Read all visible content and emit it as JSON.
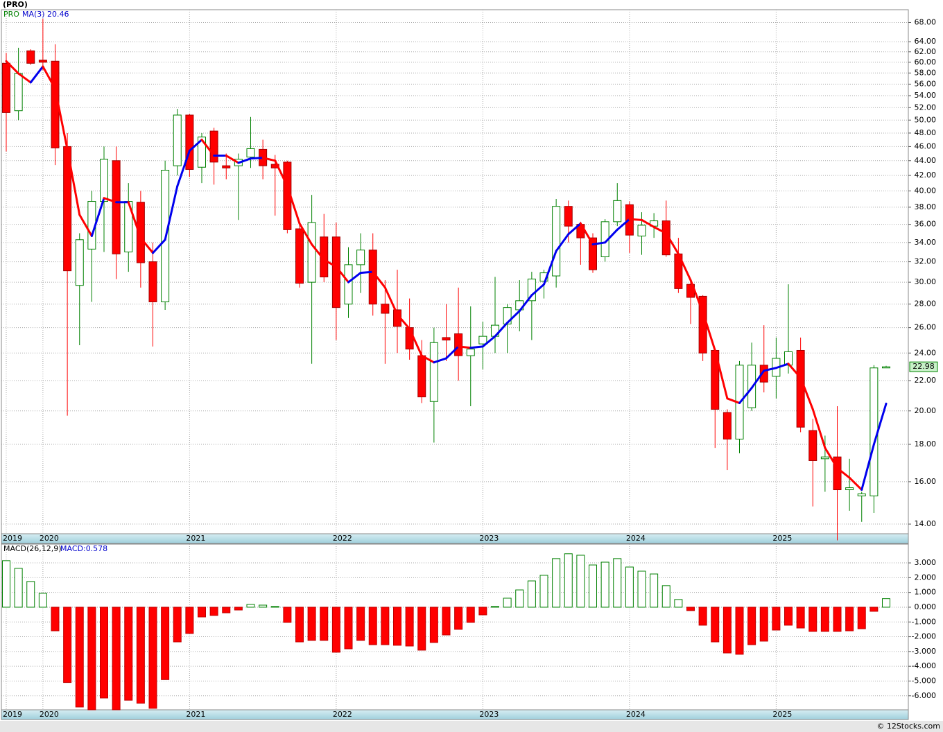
{
  "chart_data": [
    {
      "type": "candlestick",
      "title": "(PRO)",
      "symbol": "PRO",
      "log_scale": true,
      "grid": true,
      "xticks": [
        {
          "value": 0,
          "label": "2019"
        },
        {
          "value": 3,
          "label": "2020"
        },
        {
          "value": 15,
          "label": "2021"
        },
        {
          "value": 27,
          "label": "2022"
        },
        {
          "value": 39,
          "label": "2023"
        },
        {
          "value": 51,
          "label": "2024"
        },
        {
          "value": 63,
          "label": "2025"
        }
      ],
      "ylim": [
        13.58,
        70.8
      ],
      "yticks": [
        {
          "value": 14,
          "label": "14.00"
        },
        {
          "value": 16,
          "label": "16.00"
        },
        {
          "value": 18,
          "label": "18.00"
        },
        {
          "value": 20,
          "label": "20.00"
        },
        {
          "value": 22,
          "label": "22.00"
        },
        {
          "value": 24,
          "label": "24.00"
        },
        {
          "value": 26,
          "label": "26.00"
        },
        {
          "value": 28,
          "label": "28.00"
        },
        {
          "value": 30,
          "label": "30.00"
        },
        {
          "value": 32,
          "label": "32.00"
        },
        {
          "value": 34,
          "label": "34.00"
        },
        {
          "value": 36,
          "label": "36.00"
        },
        {
          "value": 38,
          "label": "38.00"
        },
        {
          "value": 40,
          "label": "40.00"
        },
        {
          "value": 42,
          "label": "42.00"
        },
        {
          "value": 44,
          "label": "44.00"
        },
        {
          "value": 46,
          "label": "46.00"
        },
        {
          "value": 48,
          "label": "48.00"
        },
        {
          "value": 50,
          "label": "50.00"
        },
        {
          "value": 52,
          "label": "52.00"
        },
        {
          "value": 54,
          "label": "54.00"
        },
        {
          "value": 56,
          "label": "56.00"
        },
        {
          "value": 58,
          "label": "58.00"
        },
        {
          "value": 60,
          "label": "60.00"
        },
        {
          "value": 62,
          "label": "62.00"
        },
        {
          "value": 64,
          "label": "64.00"
        },
        {
          "value": 68,
          "label": "68.00"
        }
      ],
      "up_color": "#008000",
      "down_color": "#ff0000",
      "open": [
        59.8,
        51.5,
        62.2,
        60.4,
        60.2,
        46,
        29.7,
        33.3,
        38.7,
        44,
        33,
        38.6,
        32,
        28.2,
        43.3,
        50.8,
        43.1,
        48.3,
        43.3,
        43.3,
        44.5,
        45.6,
        43.5,
        43.8,
        35.5,
        30,
        34.6,
        34.6,
        28,
        31.7,
        33.2,
        28,
        27.5,
        26,
        23.8,
        20.6,
        25.2,
        25.5,
        23.8,
        24.7,
        25.3,
        26.3,
        27.5,
        28.3,
        30.1,
        30.6,
        38.1,
        36,
        34.5,
        32.5,
        36.3,
        38.3,
        34.7,
        35.8,
        36.4,
        32.8,
        29.8,
        28.7,
        24.2,
        19.9,
        18.3,
        20.2,
        23.1,
        22.3,
        23.1,
        24.2,
        18.8,
        17.2,
        17.3,
        15.6,
        15.3,
        15.3,
        22.9
      ],
      "high": [
        61.8,
        62.8,
        62.5,
        68.8,
        63.5,
        48,
        35,
        40,
        46,
        46,
        41,
        40,
        34,
        44,
        51.8,
        51,
        48,
        48.8,
        45,
        45,
        50.5,
        47,
        44.8,
        44,
        36.2,
        39.5,
        37.2,
        36.2,
        33.5,
        35,
        35,
        30.2,
        31.2,
        28.5,
        25,
        26,
        28,
        29.5,
        27.8,
        26.5,
        30.5,
        28,
        30.2,
        31,
        31.2,
        39,
        38.8,
        36.3,
        35,
        36.6,
        41,
        38.7,
        37.4,
        37.3,
        38.8,
        34.5,
        30.2,
        28.8,
        24.3,
        20.1,
        23.4,
        24.8,
        26.2,
        25.2,
        29.8,
        25.2,
        19.5,
        18.5,
        20.3,
        17.2,
        15.5,
        23.1,
        23.05
      ],
      "low": [
        45.3,
        50,
        59.5,
        58.5,
        43.4,
        19.7,
        24.6,
        28.2,
        33,
        30.3,
        31,
        29.5,
        24.5,
        27.5,
        42,
        41.8,
        41,
        40.8,
        41.5,
        36.5,
        43,
        41.5,
        37,
        35,
        29.5,
        23.2,
        30,
        25,
        26.8,
        29,
        27,
        23.2,
        24,
        23.5,
        20.5,
        18.1,
        23.4,
        22,
        20.3,
        22.8,
        24,
        24,
        25.7,
        25,
        28.5,
        29.5,
        34,
        31.7,
        30.9,
        32,
        35.8,
        32.9,
        32.7,
        34.5,
        32.5,
        29,
        26.3,
        23.4,
        17.8,
        16.6,
        17.5,
        20,
        21.2,
        20.8,
        22.5,
        18.7,
        14.8,
        15.5,
        13.3,
        14.6,
        14.1,
        14.5,
        22.9
      ],
      "close": [
        51.2,
        57.9,
        59.8,
        60,
        45.8,
        31.1,
        34.3,
        38.7,
        44.2,
        32.8,
        38.7,
        31.9,
        28.2,
        42.7,
        50.8,
        42.8,
        47.4,
        43.8,
        43,
        44.2,
        45.7,
        43.3,
        43,
        35.4,
        29.9,
        36.2,
        30.5,
        27.7,
        31.7,
        33.2,
        28,
        27.2,
        26.1,
        24.3,
        20.9,
        24.8,
        25,
        23.8,
        24.3,
        25.3,
        26.2,
        27.7,
        28.3,
        30.3,
        30.9,
        38.1,
        35.8,
        34.5,
        31.2,
        36.3,
        38.8,
        34.8,
        35.9,
        36.4,
        32.7,
        29.4,
        28.6,
        24,
        20.1,
        18.3,
        23.1,
        23.1,
        21.9,
        23.6,
        24.1,
        19,
        17.1,
        17.3,
        15.6,
        15.7,
        15.4,
        22.9,
        22.98
      ],
      "ma": {
        "name": "MA(3)",
        "rise_color": "#0000ee",
        "fall_color": "#ff0000",
        "values": [
          60.2,
          57.9,
          56.3,
          59.2,
          55.2,
          45.6,
          37.1,
          34.7,
          39.1,
          38.6,
          38.6,
          34.5,
          32.9,
          34.3,
          40.6,
          45.4,
          47.0,
          44.7,
          44.7,
          43.7,
          44.3,
          44.4,
          44.0,
          40.6,
          36.1,
          33.8,
          32.2,
          31.5,
          30.0,
          30.9,
          31.0,
          29.5,
          27.1,
          25.9,
          23.8,
          23.3,
          23.6,
          24.5,
          24.4,
          24.5,
          25.3,
          26.4,
          27.4,
          28.8,
          29.8,
          33.1,
          34.9,
          36.1,
          33.8,
          34.0,
          35.4,
          36.6,
          36.5,
          35.7,
          35.0,
          32.8,
          30.2,
          27.3,
          24.2,
          20.8,
          20.5,
          21.5,
          22.7,
          22.9,
          23.2,
          22.2,
          20.1,
          17.8,
          16.7,
          16.2,
          15.6,
          18.0,
          20.46
        ]
      }
    },
    {
      "type": "histogram_bar",
      "title": "MACD(26,12,9)",
      "legend": "MACD:",
      "grid": true,
      "ylim": [
        -6.95,
        4.27
      ],
      "yticks": [
        {
          "value": 3,
          "label": "3.000"
        },
        {
          "value": 2,
          "label": "2.000"
        },
        {
          "value": 1,
          "label": "1.000"
        },
        {
          "value": 0,
          "label": "0.000"
        },
        {
          "value": -1,
          "label": "-1.000"
        },
        {
          "value": -2,
          "label": "-2.000"
        },
        {
          "value": -3,
          "label": "-3.000"
        },
        {
          "value": -4,
          "label": "-4.000"
        },
        {
          "value": -5,
          "label": "-5.000"
        },
        {
          "value": -6,
          "label": "-6.000"
        }
      ],
      "pos_color": "#008000",
      "neg_color": "#ff0000",
      "values": [
        3.15,
        2.63,
        1.74,
        0.94,
        -1.6,
        -5.1,
        -6.76,
        -6.95,
        -6.15,
        -6.95,
        -6.3,
        -6.5,
        -6.85,
        -4.9,
        -2.35,
        -1.78,
        -0.66,
        -0.56,
        -0.38,
        -0.19,
        0.19,
        0.14,
        0.05,
        -1.03,
        -2.35,
        -2.25,
        -2.25,
        -3.05,
        -2.82,
        -2.25,
        -2.54,
        -2.54,
        -2.58,
        -2.63,
        -2.91,
        -2.39,
        -1.88,
        -1.5,
        -1.03,
        -0.52,
        0.05,
        0.61,
        1.17,
        1.78,
        2.16,
        3.29,
        3.62,
        3.52,
        2.86,
        3.05,
        3.29,
        2.72,
        2.44,
        2.25,
        1.46,
        0.52,
        -0.23,
        -1.22,
        -2.35,
        -3.1,
        -3.19,
        -2.54,
        -2.3,
        -1.55,
        -1.22,
        -1.41,
        -1.64,
        -1.64,
        -1.64,
        -1.6,
        -1.46,
        -0.28,
        0.578
      ]
    }
  ],
  "source": "© 12Stocks.com"
}
